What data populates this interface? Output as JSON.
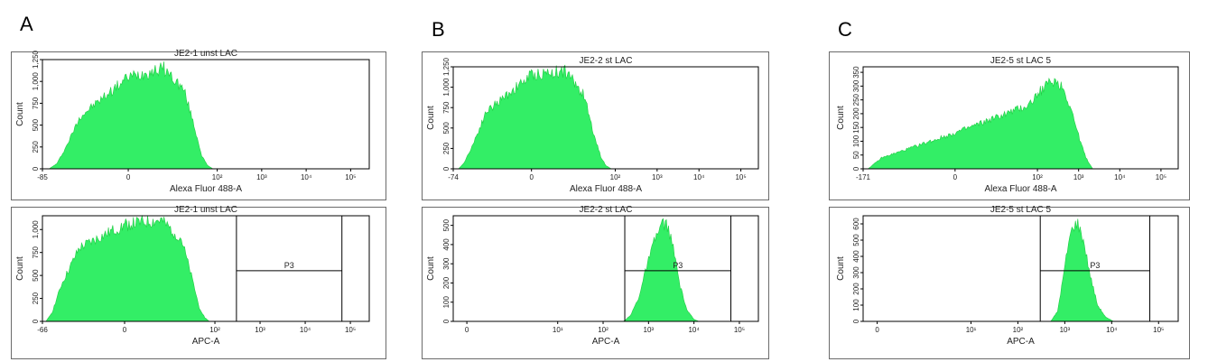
{
  "panels": [
    {
      "letter": "A"
    },
    {
      "letter": "B"
    },
    {
      "letter": "C"
    }
  ],
  "chart_data": [
    {
      "type": "area",
      "title": "JE2-1 unst LAC",
      "xlabel": "Alexa Fluor 488-A",
      "ylabel": "Count",
      "x_axis": {
        "scale": "biexponential",
        "ticks": [
          "-85",
          "0",
          "10²",
          "10³",
          "10⁴",
          "10⁵"
        ],
        "min_label": "-85"
      },
      "yticks": [
        "0",
        "250",
        "500",
        "750",
        "1,000",
        "1,250"
      ],
      "ylim": [
        0,
        1250
      ],
      "series": [
        {
          "values": [
            {
              "x": -60,
              "y": 0
            },
            {
              "x": -40,
              "y": 60
            },
            {
              "x": -25,
              "y": 250
            },
            {
              "x": -12,
              "y": 600
            },
            {
              "x": 0,
              "y": 1050
            },
            {
              "x": 8,
              "y": 1150
            },
            {
              "x": 18,
              "y": 900
            },
            {
              "x": 30,
              "y": 500
            },
            {
              "x": 45,
              "y": 150
            },
            {
              "x": 60,
              "y": 40
            },
            {
              "x": 80,
              "y": 0
            }
          ]
        }
      ],
      "color": "#33ee66"
    },
    {
      "type": "area",
      "title": "JE2-1 unst LAC",
      "xlabel": "APC-A",
      "ylabel": "Count",
      "x_axis": {
        "scale": "biexponential",
        "ticks": [
          "-66",
          "0",
          "10²",
          "10³",
          "10⁴",
          "10⁵"
        ],
        "min_label": "-66"
      },
      "yticks": [
        "0",
        "250",
        "500",
        "750",
        "1,000"
      ],
      "ylim": [
        0,
        1150
      ],
      "gate": {
        "name": "P3",
        "x_range": [
          300,
          65000
        ]
      },
      "series": [
        {
          "values": [
            {
              "x": -55,
              "y": 0
            },
            {
              "x": -40,
              "y": 100
            },
            {
              "x": -25,
              "y": 400
            },
            {
              "x": -10,
              "y": 800
            },
            {
              "x": 0,
              "y": 1050
            },
            {
              "x": 8,
              "y": 1100
            },
            {
              "x": 18,
              "y": 900
            },
            {
              "x": 30,
              "y": 500
            },
            {
              "x": 45,
              "y": 150
            },
            {
              "x": 60,
              "y": 40
            },
            {
              "x": 75,
              "y": 0
            }
          ]
        }
      ],
      "color": "#33ee66"
    },
    {
      "type": "area",
      "title": "JE2-2 st LAC",
      "xlabel": "Alexa Fluor 488-A",
      "ylabel": "Count",
      "x_axis": {
        "scale": "biexponential",
        "ticks": [
          "-74",
          "0",
          "10²",
          "10³",
          "10⁴",
          "10⁵"
        ],
        "min_label": "-74"
      },
      "yticks": [
        "0",
        "250",
        "500",
        "750",
        "1,000",
        "1,250"
      ],
      "ylim": [
        0,
        1250
      ],
      "series": [
        {
          "values": [
            {
              "x": -55,
              "y": 0
            },
            {
              "x": -40,
              "y": 80
            },
            {
              "x": -25,
              "y": 300
            },
            {
              "x": -12,
              "y": 700
            },
            {
              "x": 0,
              "y": 1150
            },
            {
              "x": 8,
              "y": 1200
            },
            {
              "x": 18,
              "y": 900
            },
            {
              "x": 30,
              "y": 450
            },
            {
              "x": 45,
              "y": 150
            },
            {
              "x": 60,
              "y": 40
            },
            {
              "x": 80,
              "y": 0
            }
          ]
        }
      ],
      "color": "#33ee66"
    },
    {
      "type": "area",
      "title": "JE2-2 st LAC",
      "xlabel": "APC-A",
      "ylabel": "Count",
      "x_axis": {
        "scale": "log",
        "ticks": [
          "0",
          "10¹",
          "10²",
          "10³",
          "10⁴",
          "10⁵"
        ]
      },
      "yticks": [
        "0",
        "100",
        "200",
        "300",
        "400",
        "500"
      ],
      "ylim": [
        0,
        550
      ],
      "gate": {
        "name": "P3",
        "x_range": [
          300,
          65000
        ]
      },
      "series": [
        {
          "values": [
            {
              "x": 280,
              "y": 0
            },
            {
              "x": 400,
              "y": 30
            },
            {
              "x": 600,
              "y": 120
            },
            {
              "x": 900,
              "y": 280
            },
            {
              "x": 1400,
              "y": 430
            },
            {
              "x": 2000,
              "y": 510
            },
            {
              "x": 2600,
              "y": 500
            },
            {
              "x": 3500,
              "y": 380
            },
            {
              "x": 5000,
              "y": 180
            },
            {
              "x": 7000,
              "y": 60
            },
            {
              "x": 10000,
              "y": 10
            },
            {
              "x": 13000,
              "y": 0
            }
          ]
        }
      ],
      "color": "#33ee66"
    },
    {
      "type": "area",
      "title": "JE2-5 st LAC 5",
      "xlabel": "Alexa Fluor 488-A",
      "ylabel": "Count",
      "x_axis": {
        "scale": "biexponential",
        "ticks": [
          "-171",
          "0",
          "10²",
          "10³",
          "10⁴",
          "10⁵"
        ],
        "min_label": "-171"
      },
      "yticks": [
        "0",
        "50",
        "100",
        "150",
        "200",
        "250",
        "300",
        "350"
      ],
      "ylim": [
        0,
        370
      ],
      "series": [
        {
          "values": [
            {
              "x": -130,
              "y": 0
            },
            {
              "x": -60,
              "y": 40
            },
            {
              "x": 0,
              "y": 130
            },
            {
              "x": 60,
              "y": 230
            },
            {
              "x": 150,
              "y": 300
            },
            {
              "x": 260,
              "y": 320
            },
            {
              "x": 400,
              "y": 300
            },
            {
              "x": 650,
              "y": 220
            },
            {
              "x": 1000,
              "y": 120
            },
            {
              "x": 1500,
              "y": 40
            },
            {
              "x": 2200,
              "y": 0
            }
          ]
        }
      ],
      "color": "#33ee66"
    },
    {
      "type": "area",
      "title": "JE2-5 st LAC 5",
      "xlabel": "APC-A",
      "ylabel": "Count",
      "x_axis": {
        "scale": "log",
        "ticks": [
          "0",
          "10¹",
          "10²",
          "10³",
          "10⁴",
          "10⁵"
        ]
      },
      "yticks": [
        "0",
        "100",
        "200",
        "300",
        "400",
        "500",
        "600"
      ],
      "ylim": [
        0,
        650
      ],
      "gate": {
        "name": "P3",
        "x_range": [
          300,
          65000
        ]
      },
      "series": [
        {
          "values": [
            {
              "x": 500,
              "y": 0
            },
            {
              "x": 700,
              "y": 60
            },
            {
              "x": 900,
              "y": 250
            },
            {
              "x": 1200,
              "y": 480
            },
            {
              "x": 1500,
              "y": 590
            },
            {
              "x": 1900,
              "y": 600
            },
            {
              "x": 2500,
              "y": 500
            },
            {
              "x": 3500,
              "y": 280
            },
            {
              "x": 5000,
              "y": 100
            },
            {
              "x": 7500,
              "y": 25
            },
            {
              "x": 11000,
              "y": 0
            }
          ]
        }
      ],
      "color": "#33ee66"
    }
  ]
}
